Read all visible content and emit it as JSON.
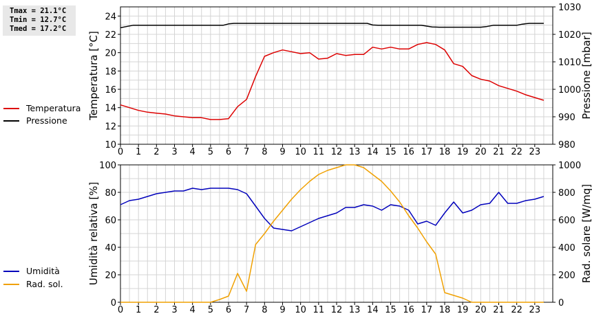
{
  "stats": {
    "tmax": "Tmax = 21.1°C",
    "tmin": "Tmin = 12.7°C",
    "tmed": "Tmed = 17.2°C"
  },
  "colors": {
    "temperature": "#dd0000",
    "pressure": "#000000",
    "humidity": "#0000bb",
    "radiation": "#f0a000",
    "grid": "#d4d4d4"
  },
  "chart_data": [
    {
      "type": "line",
      "x_ticks": [
        "0",
        "1",
        "2",
        "3",
        "4",
        "5",
        "6",
        "7",
        "8",
        "9",
        "10",
        "11",
        "12",
        "13",
        "14",
        "15",
        "16",
        "17",
        "18",
        "19",
        "20",
        "21",
        "22",
        "23"
      ],
      "xlim": [
        0,
        24
      ],
      "ylabel": "Temperatura [°C]",
      "ylim": [
        10,
        25
      ],
      "y_ticks": [
        10,
        12,
        14,
        16,
        18,
        20,
        22,
        24
      ],
      "y2label": "Pressione [mbar]",
      "y2lim": [
        980,
        1030
      ],
      "y2_ticks": [
        980,
        990,
        1000,
        1010,
        1020,
        1030
      ],
      "legend_position": "left",
      "grid": true,
      "series": [
        {
          "name": "Temperatura",
          "axis": "left",
          "x": [
            0,
            0.5,
            1,
            1.5,
            2,
            2.5,
            3,
            3.5,
            4,
            4.5,
            5,
            5.5,
            6,
            6.5,
            7,
            7.5,
            8,
            8.5,
            9,
            9.5,
            10,
            10.5,
            11,
            11.5,
            12,
            12.5,
            13,
            13.5,
            14,
            14.5,
            15,
            15.5,
            16,
            16.5,
            17,
            17.5,
            18,
            18.5,
            19,
            19.5,
            20,
            20.5,
            21,
            21.5,
            22,
            22.5,
            23,
            23.5
          ],
          "values": [
            14.3,
            14.0,
            13.7,
            13.5,
            13.4,
            13.3,
            13.1,
            13.0,
            12.9,
            12.9,
            12.7,
            12.7,
            12.8,
            14.1,
            14.9,
            17.4,
            19.6,
            20.0,
            20.3,
            20.1,
            19.9,
            20.0,
            19.3,
            19.4,
            19.9,
            19.7,
            19.8,
            19.8,
            20.6,
            20.4,
            20.6,
            20.4,
            20.4,
            20.9,
            21.1,
            20.9,
            20.3,
            18.8,
            18.5,
            17.5,
            17.1,
            16.9,
            16.4,
            16.1,
            15.8,
            15.4,
            15.1,
            14.8
          ]
        },
        {
          "name": "Pressione",
          "axis": "right",
          "x": [
            0,
            0.3,
            0.7,
            1,
            2,
            3,
            4,
            5,
            5.7,
            6,
            6.3,
            7,
            8,
            9,
            10,
            11,
            12,
            13,
            13.7,
            14,
            14.3,
            15,
            16,
            16.7,
            17,
            17.3,
            17.7,
            18,
            19,
            20,
            20.3,
            20.7,
            21,
            21.7,
            22,
            22.3,
            22.7,
            23,
            23.5
          ],
          "values": [
            1022.4,
            1022.8,
            1023.3,
            1023.3,
            1023.3,
            1023.3,
            1023.3,
            1023.3,
            1023.3,
            1023.8,
            1024.0,
            1024.0,
            1024.0,
            1024.0,
            1024.0,
            1024.0,
            1024.0,
            1024.0,
            1024.0,
            1023.4,
            1023.3,
            1023.3,
            1023.3,
            1023.3,
            1023.0,
            1022.7,
            1022.6,
            1022.6,
            1022.6,
            1022.6,
            1022.8,
            1023.3,
            1023.3,
            1023.3,
            1023.3,
            1023.7,
            1024.0,
            1024.0,
            1024.0
          ]
        }
      ]
    },
    {
      "type": "line",
      "x_ticks": [
        "0",
        "1",
        "2",
        "3",
        "4",
        "5",
        "6",
        "7",
        "8",
        "9",
        "10",
        "11",
        "12",
        "13",
        "14",
        "15",
        "16",
        "17",
        "18",
        "19",
        "20",
        "21",
        "22",
        "23"
      ],
      "xlim": [
        0,
        24
      ],
      "ylabel": "Umidità relativa [%]",
      "ylim": [
        0,
        100
      ],
      "y_ticks": [
        0,
        20,
        40,
        60,
        80,
        100
      ],
      "y2label": "Rad. solare [W/mq]",
      "y2lim": [
        0,
        1000
      ],
      "y2_ticks": [
        0,
        200,
        400,
        600,
        800,
        1000
      ],
      "legend_position": "left",
      "grid": true,
      "series": [
        {
          "name": "Umidità",
          "axis": "left",
          "x": [
            0,
            0.5,
            1,
            1.5,
            2,
            2.5,
            3,
            3.5,
            4,
            4.5,
            5,
            5.5,
            6,
            6.5,
            7,
            7.5,
            8,
            8.5,
            9,
            9.5,
            10,
            10.5,
            11,
            11.5,
            12,
            12.5,
            13,
            13.5,
            14,
            14.5,
            15,
            15.5,
            16,
            16.5,
            17,
            17.5,
            18,
            18.5,
            19,
            19.5,
            20,
            20.5,
            21,
            21.5,
            22,
            22.5,
            23,
            23.5
          ],
          "values": [
            71,
            74,
            75,
            77,
            79,
            80,
            81,
            81,
            83,
            82,
            83,
            83,
            83,
            82,
            79,
            70,
            61,
            54,
            53,
            52,
            55,
            58,
            61,
            63,
            65,
            69,
            69,
            71,
            70,
            67,
            71,
            70,
            67,
            57,
            59,
            56,
            65,
            73,
            65,
            67,
            71,
            72,
            80,
            72,
            72,
            74,
            75,
            77
          ]
        },
        {
          "name": "Rad. sol.",
          "axis": "right",
          "x": [
            0,
            1,
            2,
            3,
            4,
            5,
            5.5,
            6,
            6.5,
            7,
            7.5,
            8,
            8.5,
            9,
            9.5,
            10,
            10.5,
            11,
            11.5,
            12,
            12.5,
            13,
            13.5,
            14,
            14.5,
            15,
            15.5,
            16,
            16.5,
            17,
            17.5,
            18,
            18.5,
            19,
            19.5,
            20,
            21,
            22,
            23,
            23.5
          ],
          "values": [
            0,
            0,
            0,
            0,
            0,
            0,
            20,
            45,
            210,
            80,
            420,
            500,
            590,
            670,
            750,
            820,
            880,
            930,
            960,
            980,
            1000,
            1000,
            980,
            930,
            880,
            810,
            730,
            630,
            540,
            440,
            350,
            70,
            50,
            30,
            0,
            0,
            0,
            0,
            0,
            0
          ]
        }
      ]
    }
  ]
}
